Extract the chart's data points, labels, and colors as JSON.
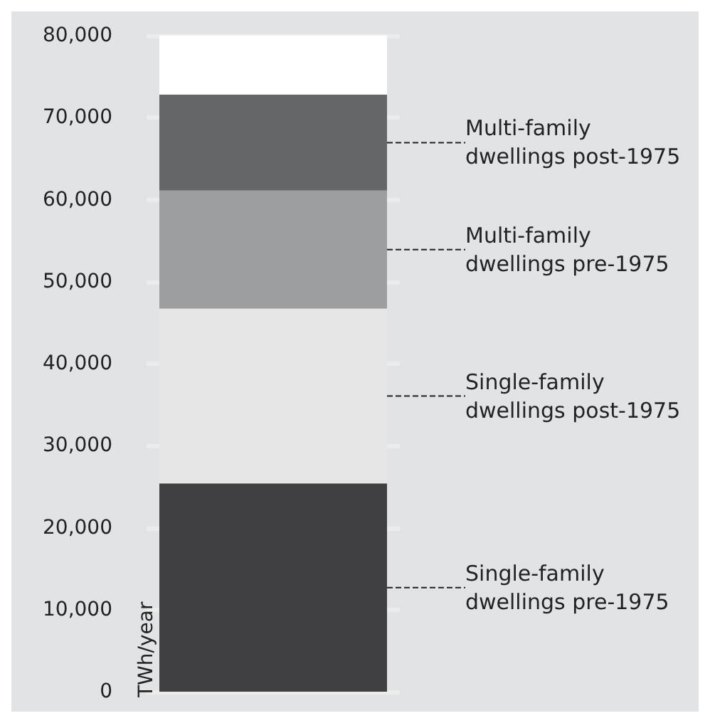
{
  "chart_data": {
    "type": "bar",
    "stacked": true,
    "categories": [
      null
    ],
    "ylabel": "TWh/year",
    "ylim": [
      0,
      80000
    ],
    "yticks": [
      {
        "value": 0,
        "label": "0"
      },
      {
        "value": 10000,
        "label": "10,000"
      },
      {
        "value": 20000,
        "label": "20,000"
      },
      {
        "value": 30000,
        "label": "30,000"
      },
      {
        "value": 40000,
        "label": "40,000"
      },
      {
        "value": 50000,
        "label": "50,000"
      },
      {
        "value": 60000,
        "label": "60,000"
      },
      {
        "value": 70000,
        "label": "70,000"
      },
      {
        "value": 80000,
        "label": "80,000"
      }
    ],
    "grid": "y",
    "legend": false,
    "tick_labels": "y",
    "series": [
      {
        "name": "Single-family dwellings pre-1975",
        "color": "#404042",
        "values": [
          25400
        ]
      },
      {
        "name": "Single-family dwellings post-1975",
        "color": "#e6e6e6",
        "values": [
          21300
        ]
      },
      {
        "name": "Multi-family dwellings pre-1975",
        "color": "#9d9e9f",
        "values": [
          14400
        ]
      },
      {
        "name": "Multi-family dwellings post-1975",
        "color": "#656667",
        "values": [
          11700
        ]
      }
    ]
  }
}
